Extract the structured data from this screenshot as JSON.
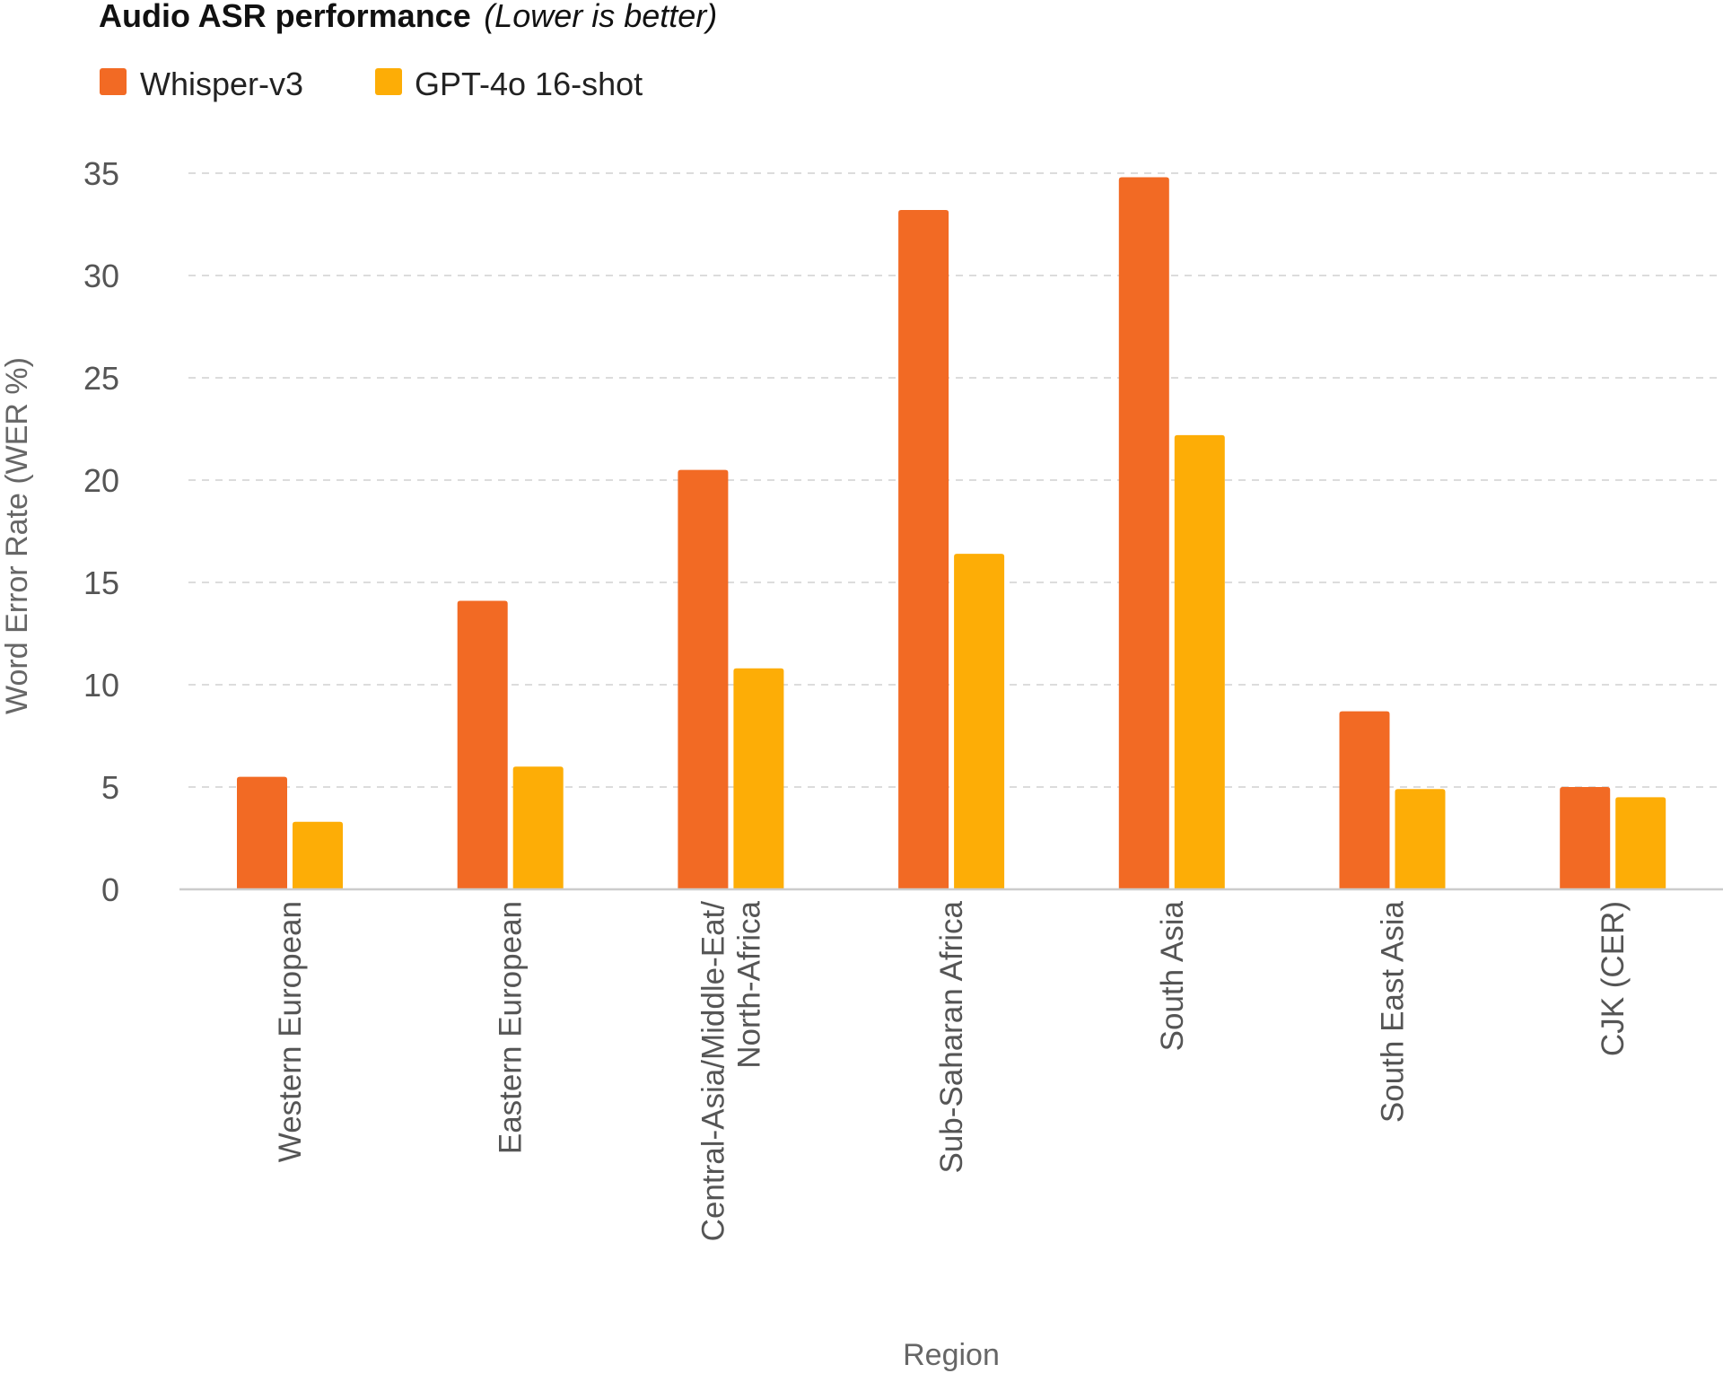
{
  "chart_data": {
    "type": "bar",
    "title": "Audio ASR performance",
    "subtitle": "(Lower is better)",
    "xlabel": "Region",
    "ylabel": "Word Error Rate (WER %)",
    "ylim": [
      0,
      35
    ],
    "yticks": [
      "0",
      "5",
      "10",
      "15",
      "20",
      "25",
      "30",
      "35"
    ],
    "grid": true,
    "legend_position": "top-left",
    "categories": [
      "Western European",
      "Eastern European",
      "Central-Asia/Middle-Eat/\nNorth-Africa",
      "Sub-Saharan Africa",
      "South Asia",
      "South East Asia",
      "CJK (CER)"
    ],
    "series": [
      {
        "name": "Whisper-v3",
        "color": "#f26a24",
        "values": [
          5.5,
          14.1,
          20.5,
          33.2,
          34.8,
          8.7,
          5.0
        ]
      },
      {
        "name": "GPT-4o 16-shot",
        "color": "#fdad06",
        "values": [
          3.3,
          6.0,
          10.8,
          16.4,
          22.2,
          4.9,
          4.5
        ]
      }
    ]
  }
}
